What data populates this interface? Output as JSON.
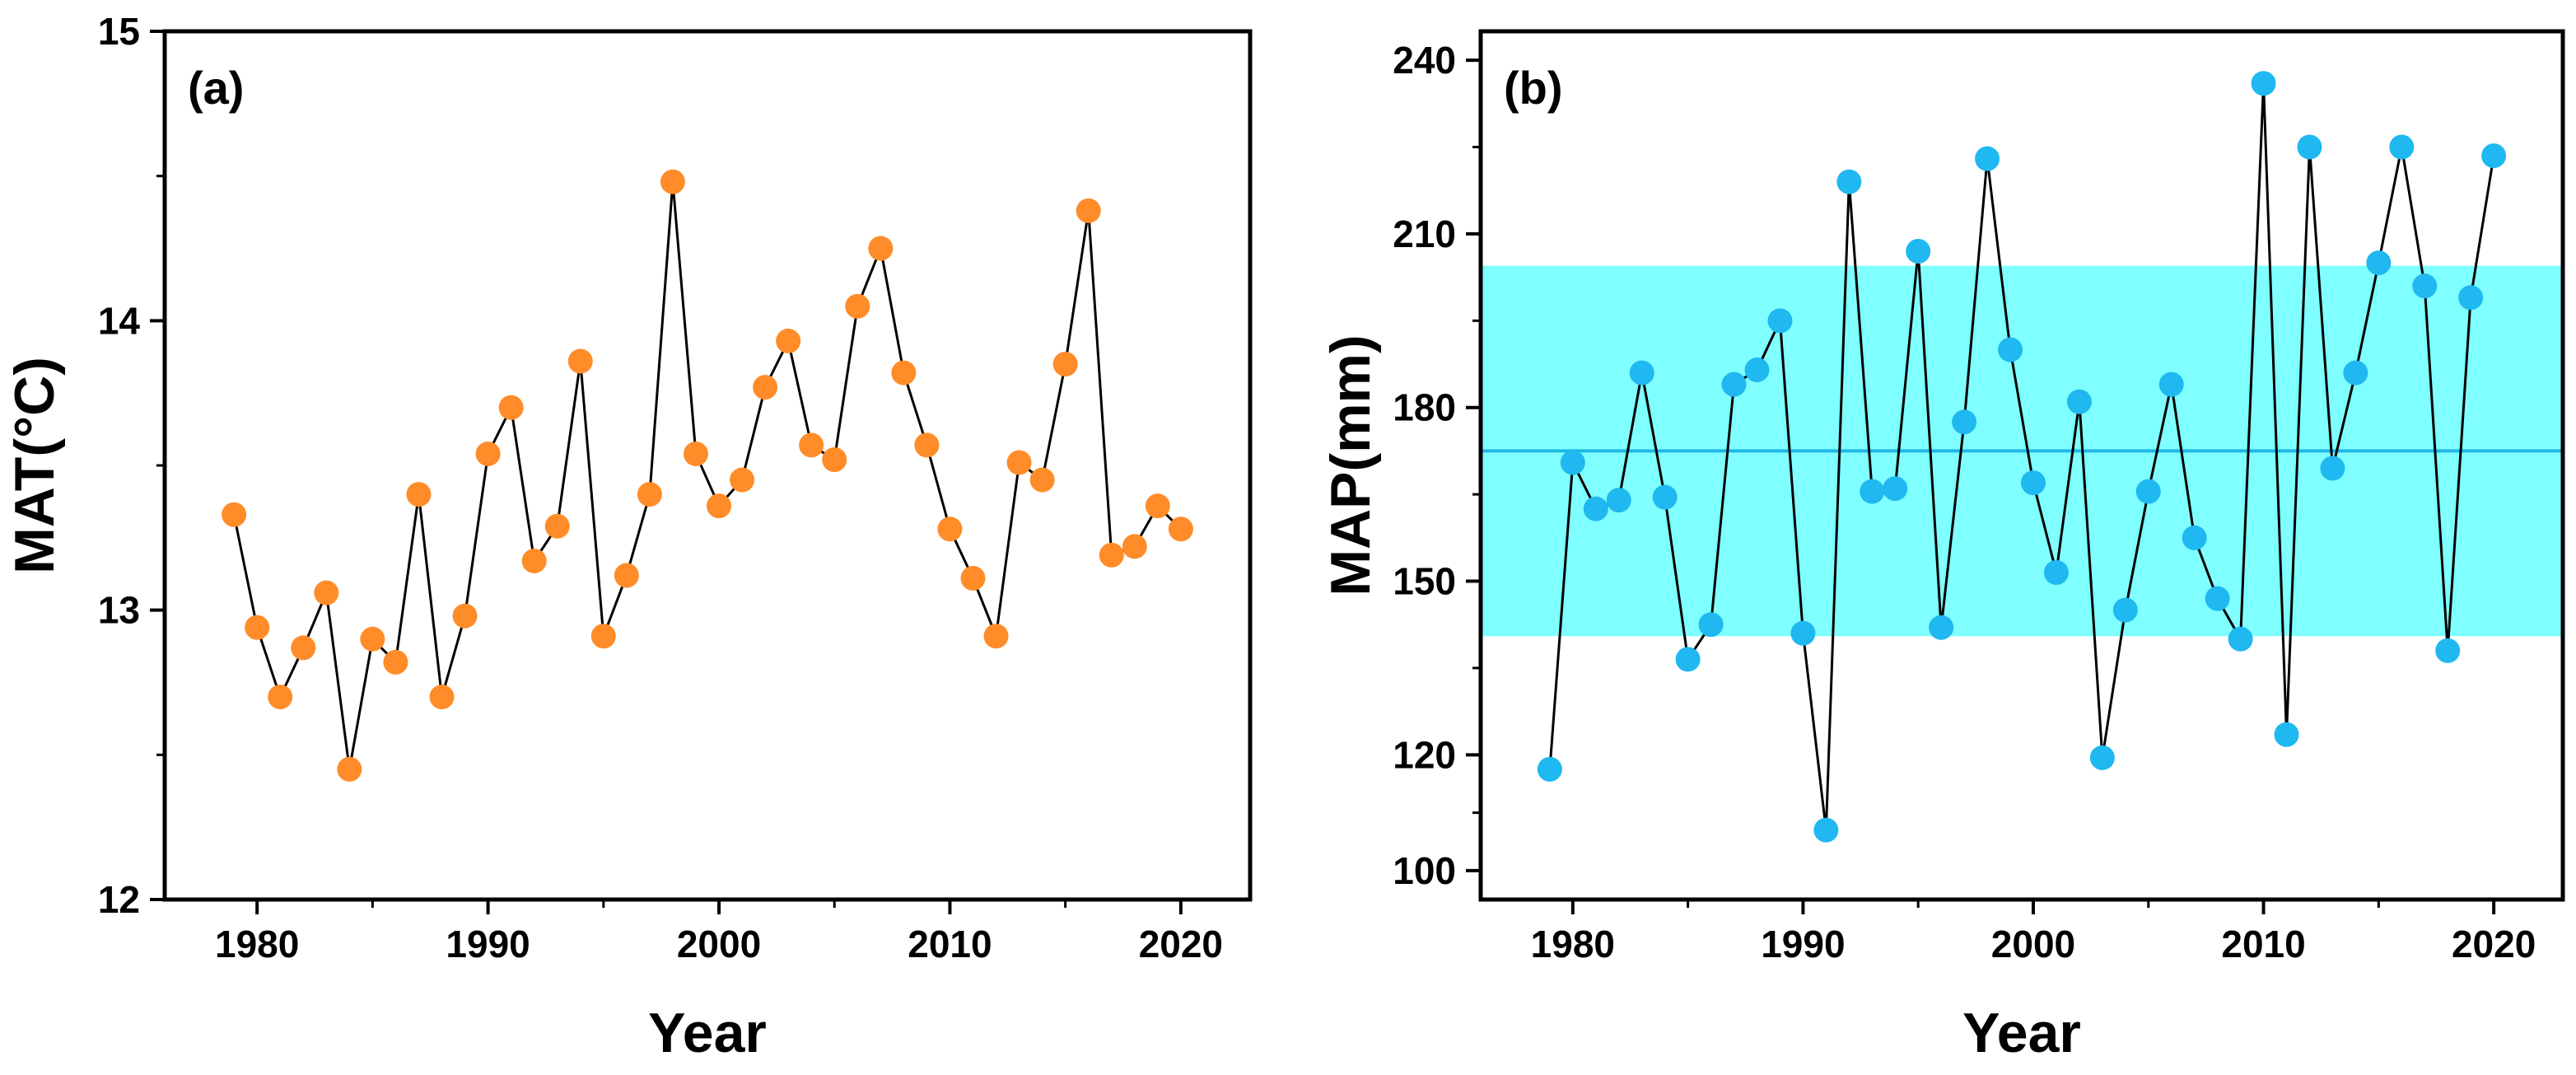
{
  "chart_data": [
    {
      "panel": "(a)",
      "type": "line",
      "xlabel": "Year",
      "ylabel": "MAT(°C)",
      "xlim": [
        1976,
        2023
      ],
      "ylim": [
        12,
        15
      ],
      "xticks": [
        1980,
        1990,
        2000,
        2010,
        2020
      ],
      "yticks": [
        12,
        13,
        14,
        15
      ],
      "color": "#FF8C28",
      "x": [
        1979,
        1980,
        1981,
        1982,
        1983,
        1984,
        1985,
        1986,
        1987,
        1988,
        1989,
        1990,
        1991,
        1992,
        1993,
        1994,
        1995,
        1996,
        1997,
        1998,
        1999,
        2000,
        2001,
        2002,
        2003,
        2004,
        2005,
        2006,
        2007,
        2008,
        2009,
        2010,
        2011,
        2012,
        2013,
        2014,
        2015,
        2016,
        2017,
        2018,
        2019,
        2020
      ],
      "values": [
        13.33,
        12.94,
        12.7,
        12.87,
        13.06,
        12.45,
        12.9,
        12.82,
        13.4,
        12.7,
        12.98,
        13.54,
        13.7,
        13.17,
        13.29,
        13.86,
        12.91,
        13.12,
        13.4,
        14.48,
        13.54,
        13.36,
        13.45,
        13.77,
        13.93,
        13.57,
        13.52,
        14.05,
        14.25,
        13.82,
        13.57,
        13.28,
        13.11,
        12.91,
        13.51,
        13.45,
        13.85,
        14.38,
        13.19,
        13.22,
        13.36,
        13.28
      ]
    },
    {
      "panel": "(b)",
      "type": "line",
      "xlabel": "Year",
      "ylabel": "MAP(mm)",
      "xlim": [
        1976,
        2023
      ],
      "ylim": [
        95,
        245
      ],
      "xticks": [
        1980,
        1990,
        2000,
        2010,
        2020
      ],
      "yticks": [
        100,
        120,
        150,
        180,
        210,
        240
      ],
      "color": "#1FB8F0",
      "mean": 172.5,
      "band": [
        140.5,
        204.5
      ],
      "band_color": "#7FFFFF",
      "mean_color": "#1FB8E0",
      "x": [
        1979,
        1980,
        1981,
        1982,
        1983,
        1984,
        1985,
        1986,
        1987,
        1988,
        1989,
        1990,
        1991,
        1992,
        1993,
        1994,
        1995,
        1996,
        1997,
        1998,
        1999,
        2000,
        2001,
        2002,
        2003,
        2004,
        2005,
        2006,
        2007,
        2008,
        2009,
        2010,
        2011,
        2012,
        2013,
        2014,
        2015,
        2016,
        2017,
        2018,
        2019,
        2020
      ],
      "values": [
        117.5,
        170.5,
        162.5,
        164.0,
        186.0,
        164.5,
        136.5,
        142.5,
        184.0,
        186.5,
        195.0,
        141.0,
        107.0,
        219.0,
        165.5,
        166.0,
        207.0,
        142.0,
        177.5,
        223.0,
        190.0,
        167.0,
        151.5,
        181.0,
        119.5,
        145.0,
        165.5,
        184.0,
        157.5,
        147.0,
        140.0,
        236.0,
        123.5,
        225.0,
        169.5,
        186.0,
        205.0,
        225.0,
        201.0,
        138.0,
        199.0,
        223.5
      ]
    }
  ]
}
